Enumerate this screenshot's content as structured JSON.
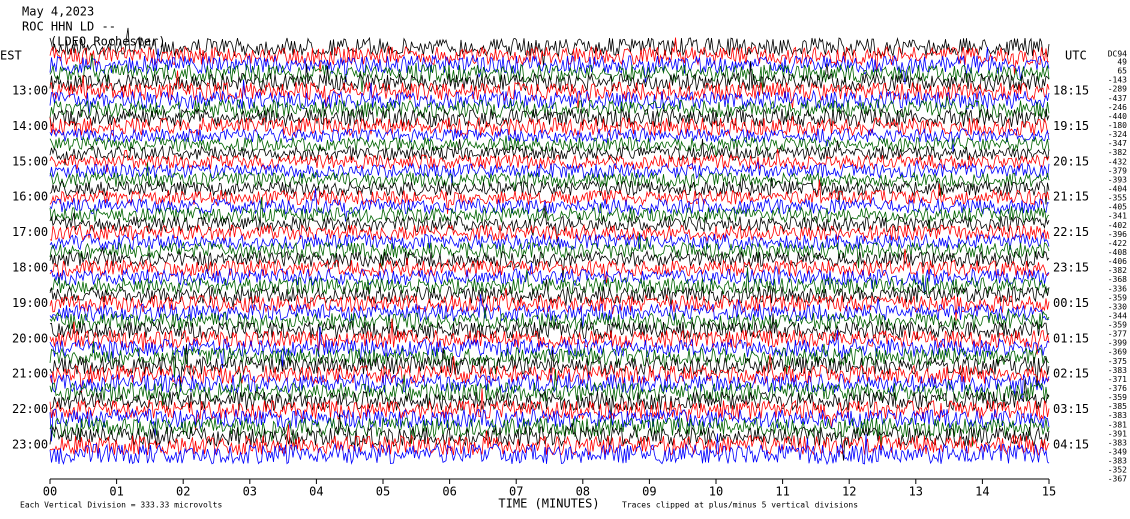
{
  "header": {
    "date": "May 4,2023",
    "station": "ROC HHN LD --",
    "location": "(LDEO Rochester)"
  },
  "left_axis": {
    "title": "EST",
    "labels": [
      "13:00",
      "14:00",
      "15:00",
      "16:00",
      "17:00",
      "18:00",
      "19:00",
      "20:00",
      "21:00",
      "22:00",
      "23:00"
    ]
  },
  "right_axis": {
    "title": "UTC",
    "labels": [
      "18:15",
      "19:15",
      "20:15",
      "21:15",
      "22:15",
      "23:15",
      "00:15",
      "01:15",
      "02:15",
      "03:15",
      "04:15"
    ]
  },
  "dc_column": {
    "title": "DC94",
    "offsets": [
      49,
      65,
      -143,
      -289,
      -437,
      -246,
      -440,
      -180,
      -324,
      -347,
      -382,
      -432,
      -379,
      -393,
      -404,
      -355,
      -405,
      -341,
      -402,
      -396,
      -422,
      -408,
      -406,
      -382,
      -368,
      -336,
      -359,
      -330,
      -344,
      -359,
      -377,
      -399,
      -369,
      -375,
      -383,
      -371,
      -376,
      -359,
      -385,
      -383,
      -381,
      -391,
      -383,
      -349,
      -383,
      -352,
      -367
    ]
  },
  "x_axis": {
    "title": "TIME (MINUTES)",
    "ticks": [
      "00",
      "01",
      "02",
      "03",
      "04",
      "05",
      "06",
      "07",
      "08",
      "09",
      "10",
      "11",
      "12",
      "13",
      "14",
      "15"
    ]
  },
  "footer": {
    "scale": "Each Vertical Division =  333.33 microvolts",
    "clip": "Traces clipped at plus/minus 5 vertical divisions"
  },
  "trace_colors": [
    "#000000",
    "#ff0000",
    "#0000ff",
    "#006400"
  ]
}
